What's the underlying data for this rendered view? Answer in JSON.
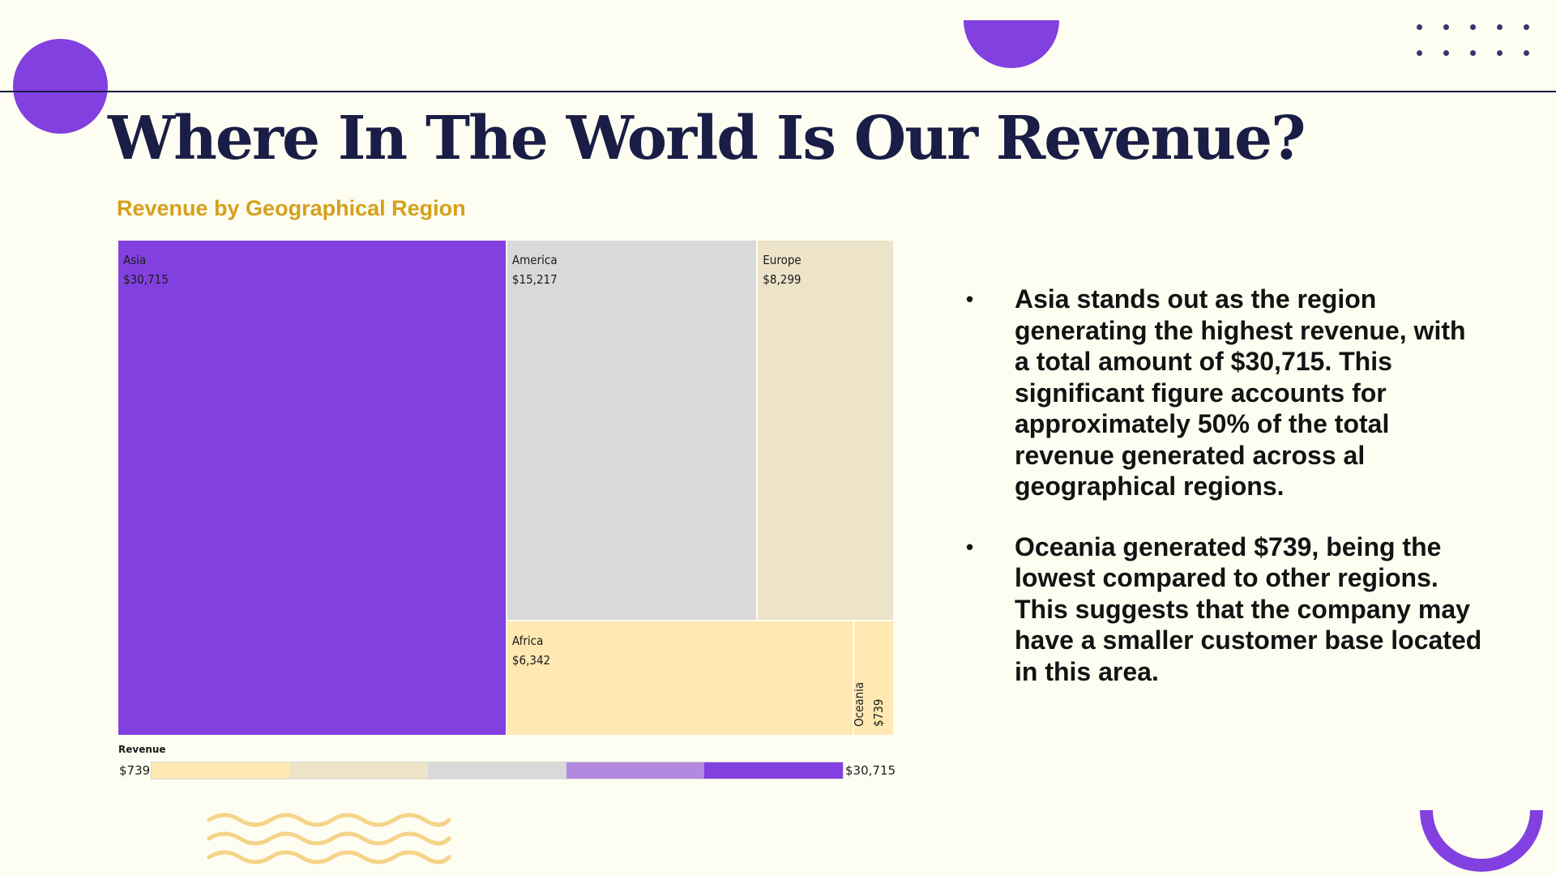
{
  "slide": {
    "title": "Where In The World Is Our Revenue?",
    "accent": "#8240e0",
    "title_color": "#1a1d45",
    "subtitle_color": "#d6a01c"
  },
  "chart_data": {
    "type": "treemap",
    "title": "Revenue by Geographical Region",
    "series": [
      {
        "name": "Asia",
        "value": 30715,
        "label": "$30,715",
        "color": "#8240e0"
      },
      {
        "name": "America",
        "value": 15217,
        "label": "$15,217",
        "color": "#d9d9d9"
      },
      {
        "name": "Europe",
        "value": 8299,
        "label": "$8,299",
        "color": "#ece3c9"
      },
      {
        "name": "Africa",
        "value": 6342,
        "label": "$6,342",
        "color": "#ffe8b2"
      },
      {
        "name": "Oceania",
        "value": 739,
        "label": "$739",
        "color": "#ffe8b2"
      }
    ],
    "legend": {
      "title": "Revenue",
      "min_label": "$739",
      "max_label": "$30,715",
      "min": 739,
      "max": 30715,
      "colors": [
        "#ffe8b2",
        "#ece3c9",
        "#d9d9d9",
        "#b18ae0",
        "#8240e0"
      ]
    }
  },
  "bullets": [
    {
      "text": "Asia stands out as the region generating the highest revenue, with a total amount of $30,715. This significant figure accounts for approximately 50% of the total revenue generated across al geographical regions."
    },
    {
      "text": "Oceania generated $739, being the lowest compared to other regions. This suggests that the company may have a smaller customer base located in this area."
    }
  ],
  "bullet_symbol": "•"
}
